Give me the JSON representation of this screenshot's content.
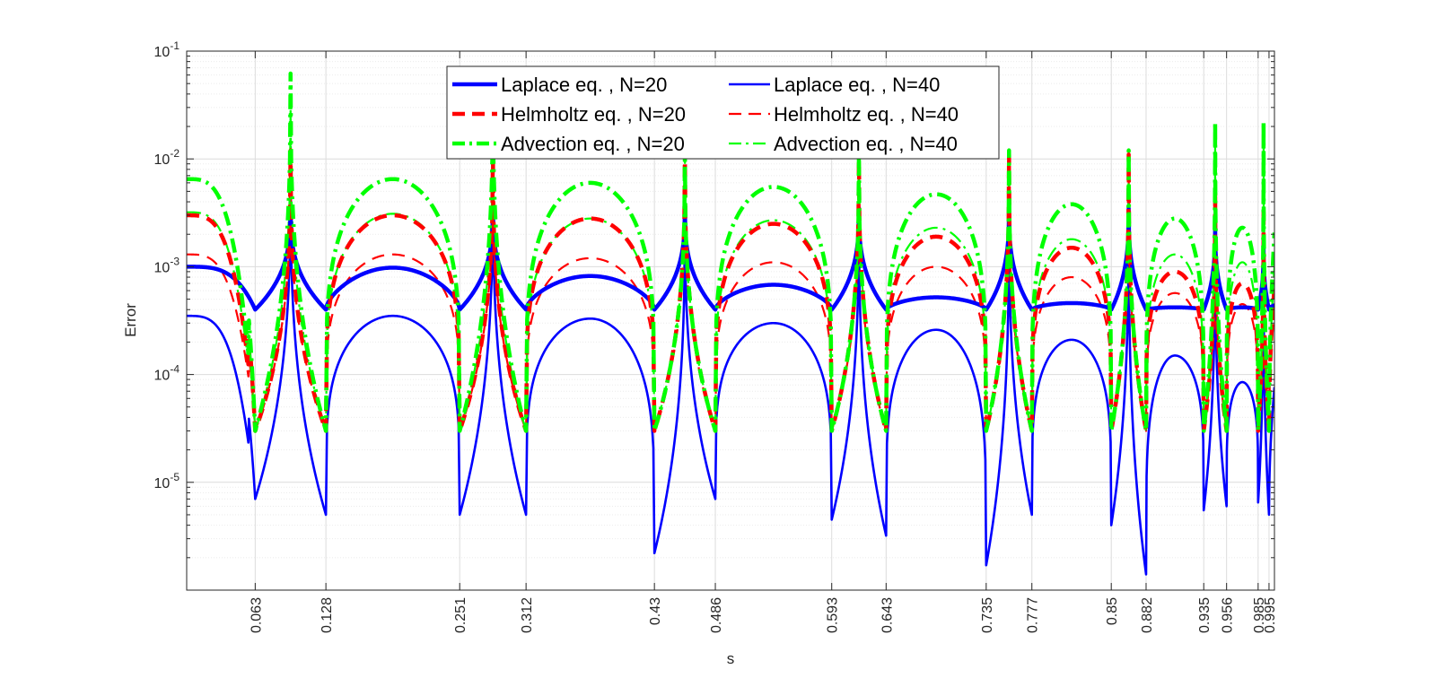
{
  "chart_data": {
    "type": "line",
    "title": "",
    "xlabel": "s",
    "ylabel": "Error",
    "yscale": "log",
    "xlim": [
      0,
      1
    ],
    "ylim": [
      1e-06,
      0.1
    ],
    "grid": true,
    "legend_position": "top-center",
    "x_tick_labels": [
      "0.063",
      "0.128",
      "0.251",
      "0.312",
      "0.43",
      "0.486",
      "0.593",
      "0.643",
      "0.735",
      "0.777",
      "0.85",
      "0.882",
      "0.935",
      "0.956",
      "0.985",
      "0.995"
    ],
    "y_tick_labels": [
      {
        "base": "10",
        "exp": "-1"
      },
      {
        "base": "10",
        "exp": "-2"
      },
      {
        "base": "10",
        "exp": "-3"
      },
      {
        "base": "10",
        "exp": "-4"
      },
      {
        "base": "10",
        "exp": "-5"
      }
    ],
    "zeros": [
      0.063,
      0.128,
      0.251,
      0.312,
      0.43,
      0.486,
      0.593,
      0.643,
      0.735,
      0.777,
      0.85,
      0.882,
      0.935,
      0.956,
      0.985,
      0.995
    ],
    "series": [
      {
        "name": "Laplace eq. ,    N=20",
        "color": "#0000ff",
        "dash": "solid",
        "width": "thick",
        "floor": 0.0004,
        "peaks": [
          0.0035,
          0.0035,
          0.0035,
          0.0035,
          0.0035,
          0.0035,
          0.0025,
          0.0017,
          0.0008,
          0.0005
        ],
        "humps": [
          0.001,
          0.00098,
          0.00082,
          0.00068,
          0.00052,
          0.00046,
          0.00042,
          0.00042
        ]
      },
      {
        "name": "Laplace eq. ,     N=40",
        "color": "#0000ff",
        "dash": "solid",
        "width": "thin",
        "peaks": [
          0.008,
          0.008,
          0.0043,
          0.0045,
          0.0045,
          0.0045,
          0.003,
          0.0022,
          0.0006,
          0.00018
        ],
        "humps": [
          0.00035,
          0.00035,
          0.00033,
          0.0003,
          0.00026,
          0.00021,
          0.00015,
          8.5e-05
        ],
        "minima": [
          7e-06,
          5e-06,
          5e-06,
          5e-06,
          2.2e-06,
          7e-06,
          4.5e-06,
          3.2e-06,
          1.7e-06,
          5e-06,
          4e-06,
          1.4e-06,
          5.5e-06,
          6e-06,
          6.5e-06,
          5e-06
        ]
      },
      {
        "name": "Helmholtz eq. , N=20",
        "color": "#ff0000",
        "dash": "dash",
        "width": "thick",
        "peaks": [
          0.012,
          0.012,
          0.012,
          0.012,
          0.011,
          0.011,
          0.005,
          0.0035,
          0.0025,
          0.0012
        ],
        "humps": [
          0.003,
          0.003,
          0.0028,
          0.0025,
          0.0019,
          0.0015,
          0.0009,
          0.0007
        ]
      },
      {
        "name": "Helmholtz eq. , N=40",
        "color": "#ff0000",
        "dash": "dash",
        "width": "thin",
        "peaks": [
          0.01,
          0.01,
          0.008,
          0.008,
          0.008,
          0.008,
          0.004,
          0.003,
          0.002,
          0.001
        ],
        "humps": [
          0.0013,
          0.0013,
          0.0012,
          0.0011,
          0.001,
          0.0008,
          0.00057,
          0.00045
        ]
      },
      {
        "name": "Advection eq. , N=20",
        "color": "#00ff00",
        "dash": "dashdot",
        "width": "thick",
        "peaks": [
          0.062,
          0.062,
          0.012,
          0.012,
          0.012,
          0.012,
          0.022,
          0.022,
          0.016,
          0.009
        ],
        "humps": [
          0.0065,
          0.0065,
          0.006,
          0.0055,
          0.0047,
          0.0038,
          0.0028,
          0.0023
        ]
      },
      {
        "name": "Advection eq. , N=40",
        "color": "#00ff00",
        "dash": "dashdot",
        "width": "thin",
        "peaks": [
          0.03,
          0.03,
          0.012,
          0.012,
          0.012,
          0.012,
          0.015,
          0.015,
          0.01,
          0.006
        ],
        "humps": [
          0.0032,
          0.0031,
          0.0028,
          0.0027,
          0.0023,
          0.0018,
          0.0013,
          0.0011
        ]
      }
    ]
  }
}
